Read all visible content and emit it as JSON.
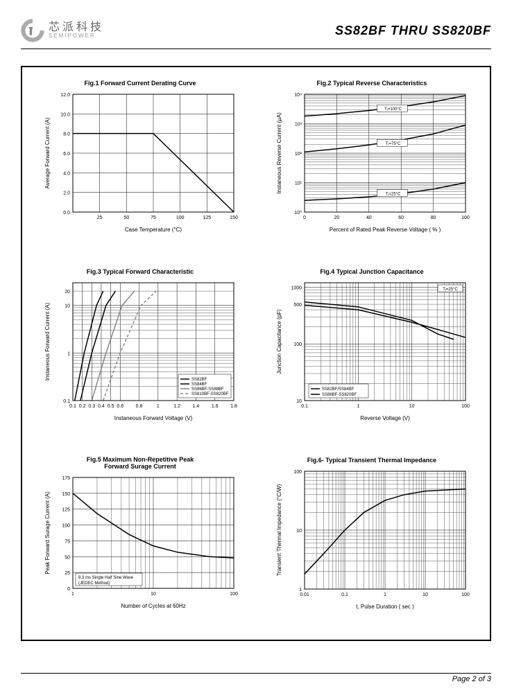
{
  "header": {
    "logo_cn": "芯派科技",
    "logo_en": "SEMIPOWER",
    "title": "SS82BF  THRU  SS820BF"
  },
  "footer": {
    "page": "Page 2 of 3"
  },
  "fig1": {
    "title": "Fig.1  Forward Current Derating Curve",
    "type": "line",
    "xlabel": "Case Temperature (°C)",
    "ylabel": "Average Forward Current (A)",
    "xlim": [
      0,
      150
    ],
    "ylim": [
      0,
      12
    ],
    "xticks": [
      25,
      50,
      75,
      100,
      125,
      150
    ],
    "yticks": [
      0,
      2,
      4,
      6,
      8,
      10,
      12
    ],
    "ytick_labels": [
      "0.0",
      "2.0",
      "4.0",
      "6.0",
      "8.0",
      "10.0",
      "12.0"
    ],
    "series": [
      {
        "color": "#000",
        "points": [
          [
            0,
            8
          ],
          [
            75,
            8
          ],
          [
            150,
            0
          ]
        ]
      }
    ],
    "grid_color": "#000",
    "bg": "#fff"
  },
  "fig2": {
    "title": "Fig.2  Typical Reverse Characteristics",
    "type": "semilogy",
    "xlabel": "Percent of Rated Peak Reverse Voltage ( % )",
    "ylabel": "Instaneous Reverse Current (µA)",
    "xlim": [
      0,
      100
    ],
    "ylim": [
      1,
      10000
    ],
    "xticks": [
      0,
      20,
      40,
      60,
      80,
      100
    ],
    "yticks": [
      1,
      10,
      100,
      1000,
      10000
    ],
    "ytick_labels": [
      "10⁰",
      "10¹",
      "10²",
      "10³",
      "10⁴"
    ],
    "labels": [
      "Tⱼ=100°C",
      "Tⱼ=75°C",
      "Tⱼ=25°C"
    ],
    "series": [
      {
        "color": "#000",
        "points": [
          [
            0,
            1800
          ],
          [
            20,
            2200
          ],
          [
            40,
            2800
          ],
          [
            60,
            3800
          ],
          [
            80,
            5500
          ],
          [
            100,
            9000
          ]
        ]
      },
      {
        "color": "#000",
        "points": [
          [
            0,
            110
          ],
          [
            20,
            140
          ],
          [
            40,
            190
          ],
          [
            60,
            280
          ],
          [
            80,
            450
          ],
          [
            100,
            900
          ]
        ]
      },
      {
        "color": "#000",
        "points": [
          [
            0,
            2.5
          ],
          [
            20,
            2.8
          ],
          [
            40,
            3.3
          ],
          [
            60,
            4.2
          ],
          [
            80,
            6
          ],
          [
            100,
            10
          ]
        ]
      }
    ]
  },
  "fig3": {
    "title": "Fig.3  Typical Forward Characteristic",
    "type": "semilogy",
    "xlabel": "Instaneous Forward Voltage (V)",
    "ylabel": "Instaneous Forward Current (A)",
    "xlim": [
      0.1,
      1.8
    ],
    "ylim": [
      0.1,
      30
    ],
    "xticks": [
      0.1,
      0.2,
      0.3,
      0.4,
      0.5,
      0.6,
      0.8,
      1.0,
      1.2,
      1.4,
      1.6,
      1.8
    ],
    "yticks": [
      0.1,
      1,
      10,
      20
    ],
    "legend": [
      "SS82BF",
      "SS84BF",
      "SS86BF-SS88BF",
      "SS810BF-SS820BF"
    ],
    "series": [
      {
        "color": "#000",
        "width": 1.5,
        "points": [
          [
            0.12,
            0.1
          ],
          [
            0.22,
            1
          ],
          [
            0.35,
            10
          ],
          [
            0.42,
            20
          ]
        ]
      },
      {
        "color": "#000",
        "width": 2,
        "points": [
          [
            0.18,
            0.1
          ],
          [
            0.3,
            1
          ],
          [
            0.45,
            10
          ],
          [
            0.55,
            20
          ]
        ]
      },
      {
        "color": "#888",
        "width": 1.5,
        "points": [
          [
            0.3,
            0.1
          ],
          [
            0.45,
            1
          ],
          [
            0.62,
            10
          ],
          [
            0.75,
            20
          ]
        ]
      },
      {
        "color": "#888",
        "width": 1.5,
        "dash": "4 3",
        "points": [
          [
            0.42,
            0.1
          ],
          [
            0.6,
            1
          ],
          [
            0.82,
            10
          ],
          [
            0.98,
            20
          ]
        ]
      }
    ]
  },
  "fig4": {
    "title": "Fig.4  Typical Junction Capacitance",
    "type": "loglog",
    "xlabel": "Reverse  Voltage (V)",
    "ylabel": "Junction Capacitance (pF)",
    "xlim": [
      0.1,
      100
    ],
    "ylim": [
      10,
      1200
    ],
    "xticks": [
      0.1,
      1,
      10,
      100
    ],
    "yticks": [
      10,
      100,
      500,
      1000
    ],
    "note": "Tⱼ=25°C",
    "legend": [
      "SS82BF/SS84BF",
      "SS86BF-SS820BF"
    ],
    "series": [
      {
        "color": "#000",
        "points": [
          [
            0.1,
            550
          ],
          [
            1,
            450
          ],
          [
            10,
            260
          ],
          [
            30,
            150
          ],
          [
            60,
            120
          ]
        ]
      },
      {
        "color": "#000",
        "points": [
          [
            0.1,
            480
          ],
          [
            1,
            400
          ],
          [
            10,
            240
          ],
          [
            30,
            180
          ],
          [
            100,
            130
          ]
        ]
      }
    ]
  },
  "fig5": {
    "title": "Fig.5  Maximum Non-Repetitive Peak",
    "title2": "Forward Surage Current",
    "type": "semilogx",
    "xlabel": "Number of Cycles at 60Hz",
    "ylabel": "Peak Forward Surage Current (A)",
    "xlim": [
      1,
      100
    ],
    "ylim": [
      0,
      175
    ],
    "xticks": [
      1,
      10,
      100
    ],
    "yticks": [
      0,
      25,
      50,
      75,
      100,
      125,
      150,
      175
    ],
    "note": "8.3 ms Single Half Sine Wave\n(JEDEC Method)",
    "series": [
      {
        "color": "#000",
        "points": [
          [
            1,
            150
          ],
          [
            2,
            118
          ],
          [
            5,
            85
          ],
          [
            10,
            67
          ],
          [
            20,
            57
          ],
          [
            50,
            50
          ],
          [
            100,
            48
          ]
        ]
      }
    ]
  },
  "fig6": {
    "title": "Fig.6- Typical Transient Thermal Impedance",
    "type": "loglog",
    "xlabel": "t, Pulse Duration ( sec )",
    "ylabel": "Transient Thermal Impedance (°C/W)",
    "xlim": [
      0.01,
      100
    ],
    "ylim": [
      1,
      100
    ],
    "xticks": [
      0.01,
      0.1,
      1,
      10,
      100
    ],
    "yticks": [
      1,
      10,
      100
    ],
    "series": [
      {
        "color": "#000",
        "points": [
          [
            0.01,
            1.8
          ],
          [
            0.03,
            4
          ],
          [
            0.1,
            10
          ],
          [
            0.3,
            20
          ],
          [
            1,
            32
          ],
          [
            3,
            40
          ],
          [
            10,
            46
          ],
          [
            30,
            48
          ],
          [
            100,
            50
          ]
        ]
      }
    ]
  }
}
